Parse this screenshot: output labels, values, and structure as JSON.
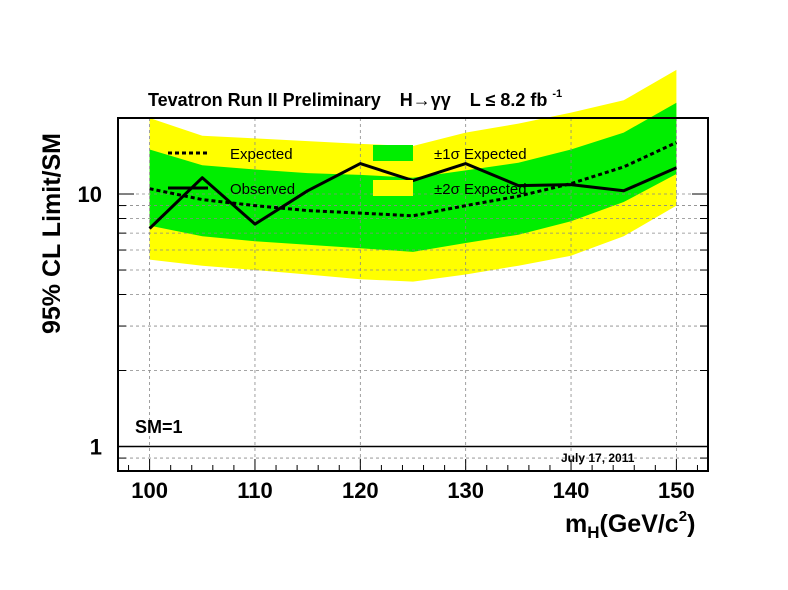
{
  "chart_data": {
    "type": "line",
    "title_parts": {
      "main": "Tevatron Run II Preliminary",
      "process": "H→γγ",
      "lumi": "L ≤ 8.2 fb",
      "lumi_exp": "-1"
    },
    "xlabel": {
      "main": "m",
      "sub": "H",
      "unit": "(GeV/c",
      "sup": "2",
      "close": ")"
    },
    "ylabel": "95% CL Limit/SM",
    "x_ticks": [
      100,
      110,
      120,
      130,
      140,
      150
    ],
    "y_ticks": [
      {
        "value": 1,
        "label": "1"
      },
      {
        "value": 10,
        "label": "10"
      }
    ],
    "xlim": [
      97,
      153
    ],
    "ylim": [
      0.8,
      20
    ],
    "y_scale": "log",
    "grid": true,
    "x": [
      100,
      105,
      110,
      115,
      120,
      125,
      130,
      135,
      140,
      145,
      150
    ],
    "series": [
      {
        "name": "Expected",
        "style": "dotted",
        "color": "#000000",
        "values": [
          10.5,
          9.5,
          9.0,
          8.6,
          8.4,
          8.2,
          9.0,
          9.8,
          11.0,
          12.8,
          16.0
        ]
      },
      {
        "name": "Observed",
        "style": "solid",
        "color": "#000000",
        "values": [
          7.3,
          11.6,
          7.6,
          10.3,
          13.2,
          11.3,
          13.2,
          10.8,
          10.9,
          10.3,
          12.7
        ]
      }
    ],
    "bands": [
      {
        "name": "±2σ Expected",
        "color": "#ffff00",
        "low": [
          5.5,
          5.2,
          5.0,
          4.8,
          4.6,
          4.5,
          4.8,
          5.2,
          5.7,
          6.8,
          9.0
        ],
        "high": [
          20.0,
          17.0,
          16.6,
          16.2,
          15.8,
          15.5,
          17.5,
          19.0,
          21.0,
          23.5,
          31.0
        ]
      },
      {
        "name": "±1σ Expected",
        "color": "#00ee00",
        "low": [
          7.5,
          6.8,
          6.5,
          6.3,
          6.1,
          5.9,
          6.4,
          6.9,
          7.8,
          9.3,
          12.0
        ],
        "high": [
          15.0,
          13.0,
          12.5,
          12.1,
          11.9,
          11.6,
          12.4,
          13.3,
          15.0,
          17.5,
          23.0
        ]
      }
    ],
    "legend": [
      "Expected",
      "±1σ Expected",
      "Observed",
      "±2σ Expected"
    ],
    "legend_position": "top",
    "reference_line": {
      "value": 1,
      "label": "SM=1"
    },
    "annotation": "July 17, 2011"
  }
}
